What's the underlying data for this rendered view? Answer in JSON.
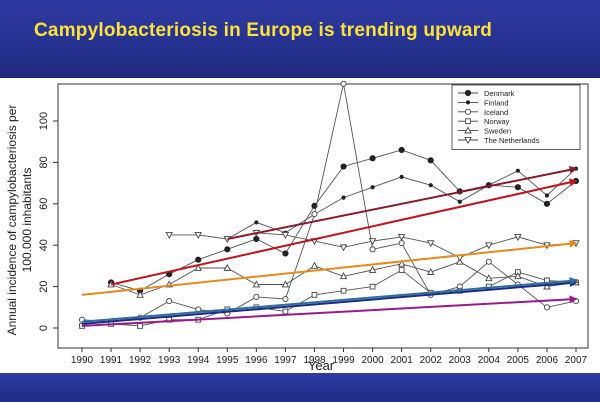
{
  "banner": {
    "title": "Campylobacteriosis in Europe is trending upward"
  },
  "chart_data": {
    "type": "line",
    "title": "Campylobacteriosis in Europe is trending upward",
    "xlabel": "Year",
    "ylabel_line1": "Annual incidence of campylobacteriosis per",
    "ylabel_line2": "100.000 inhabitants",
    "xlim": [
      1990,
      2007
    ],
    "ylim": [
      0,
      120
    ],
    "x_ticks": [
      1990,
      1991,
      1992,
      1993,
      1994,
      1995,
      1996,
      1997,
      1998,
      1999,
      2000,
      2001,
      2002,
      2003,
      2004,
      2005,
      2006,
      2007
    ],
    "y_ticks": [
      0,
      20,
      40,
      60,
      80,
      100
    ],
    "legend_position": "top-right",
    "series": [
      {
        "name": "Denmark",
        "marker": "filled-circle",
        "x": [
          1991,
          1992,
          1993,
          1994,
          1995,
          1996,
          1997,
          1998,
          1999,
          2000,
          2001,
          2002,
          2003,
          2004,
          2005,
          2006,
          2007
        ],
        "values": [
          22,
          18,
          26,
          33,
          38,
          43,
          36,
          59,
          78,
          82,
          86,
          81,
          66,
          69,
          68,
          60,
          71
        ]
      },
      {
        "name": "Finland",
        "marker": "small-dot",
        "x": [
          1995,
          1996,
          1997,
          1998,
          1999,
          2000,
          2001,
          2002,
          2003,
          2004,
          2005,
          2006,
          2007
        ],
        "values": [
          43,
          51,
          46,
          55,
          63,
          68,
          73,
          69,
          61,
          69,
          76,
          64,
          77
        ]
      },
      {
        "name": "Iceland",
        "marker": "open-circle",
        "x": [
          1990,
          1991,
          1992,
          1993,
          1994,
          1995,
          1996,
          1997,
          1998,
          1999,
          2000,
          2001,
          2002,
          2003,
          2004,
          2005,
          2006,
          2007
        ],
        "values": [
          4,
          3,
          5,
          13,
          9,
          7,
          15,
          14,
          55,
          118,
          38,
          41,
          16,
          20,
          32,
          21,
          10,
          13
        ]
      },
      {
        "name": "Norway",
        "marker": "open-square",
        "x": [
          1990,
          1991,
          1992,
          1993,
          1994,
          1995,
          1996,
          1997,
          1998,
          1999,
          2000,
          2001,
          2002,
          2003,
          2004,
          2005,
          2006,
          2007
        ],
        "values": [
          1,
          2,
          1,
          4,
          4,
          9,
          10,
          8,
          16,
          18,
          20,
          28,
          17,
          18,
          20,
          27,
          23,
          22
        ]
      },
      {
        "name": "Sweden",
        "marker": "open-triangle-up",
        "x": [
          1991,
          1992,
          1993,
          1994,
          1995,
          1996,
          1997,
          1998,
          1999,
          2000,
          2001,
          2002,
          2003,
          2004,
          2005,
          2006,
          2007
        ],
        "values": [
          21,
          16,
          21,
          29,
          29,
          21,
          21,
          30,
          25,
          28,
          31,
          27,
          32,
          24,
          25,
          20,
          22
        ]
      },
      {
        "name": "The Netherlands",
        "marker": "open-triangle-down",
        "x": [
          1993,
          1994,
          1995,
          1996,
          1997,
          1998,
          1999,
          2000,
          2001,
          2002,
          2003,
          2004,
          2005,
          2006,
          2007
        ],
        "values": [
          45,
          45,
          43,
          46,
          45,
          42,
          39,
          42,
          44,
          41,
          34,
          40,
          44,
          40,
          41
        ]
      }
    ],
    "trend_lines": [
      {
        "name": "trend-denmark",
        "color": "#c0141e",
        "x": [
          1991,
          2007
        ],
        "values": [
          21,
          71
        ]
      },
      {
        "name": "trend-finland",
        "color": "#8a1a2a",
        "x": [
          1995,
          2007
        ],
        "values": [
          43,
          77
        ]
      },
      {
        "name": "trend-netherlands",
        "color": "#e68a1e",
        "x": [
          1990,
          2007
        ],
        "values": [
          16,
          41
        ]
      },
      {
        "name": "trend-sweden",
        "color": "#1a2a8a",
        "x": [
          1990,
          2007
        ],
        "values": [
          2,
          22
        ]
      },
      {
        "name": "trend-norway",
        "color": "#2e6e9a",
        "x": [
          1990,
          2007
        ],
        "values": [
          3,
          23
        ]
      },
      {
        "name": "trend-iceland",
        "color": "#9a1a8a",
        "x": [
          1990,
          2007
        ],
        "values": [
          1,
          14
        ]
      }
    ]
  }
}
